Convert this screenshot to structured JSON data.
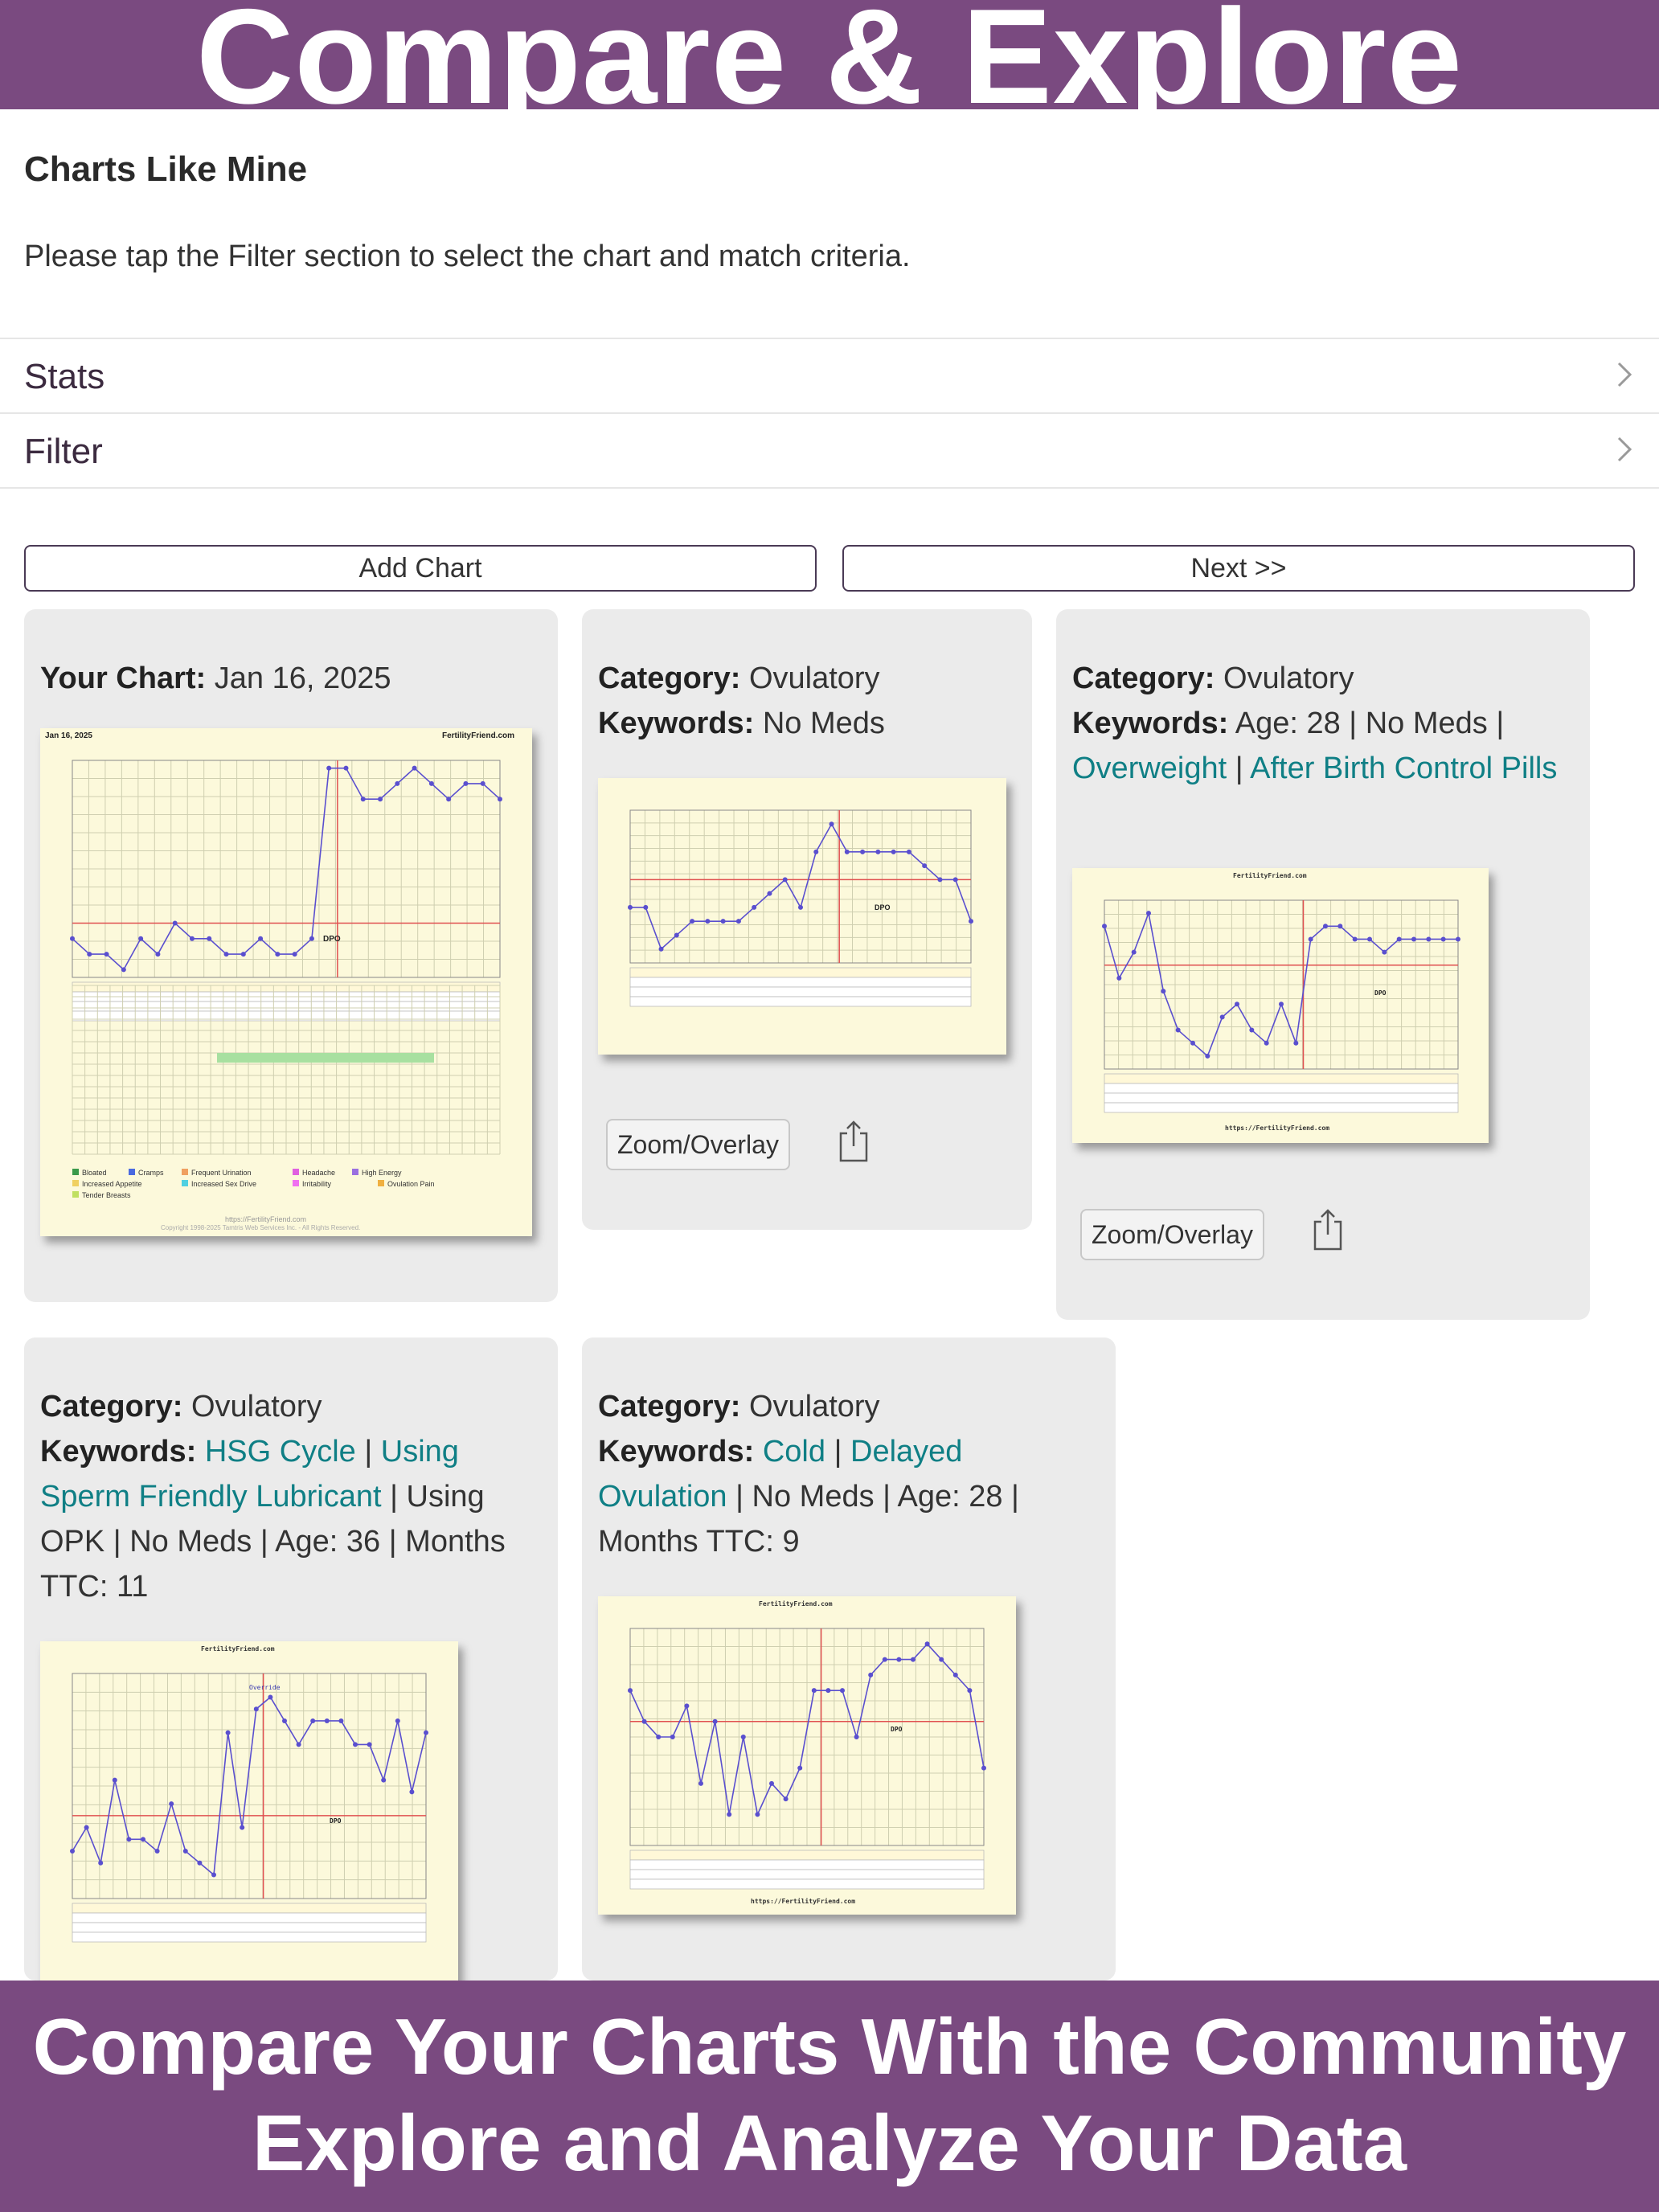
{
  "banner_top": "Compare & Explore",
  "section": {
    "heading": "Charts Like Mine",
    "instructions": "Please tap the Filter section to select the chart and match criteria."
  },
  "rows": [
    {
      "label": "Stats",
      "icon": "chevron-right-icon"
    },
    {
      "label": "Filter",
      "icon": "chevron-right-icon"
    }
  ],
  "buttons": {
    "add_chart": "Add Chart",
    "next": "Next >>"
  },
  "cards": [
    {
      "label": "Your Chart:",
      "date": "Jan 16, 2025",
      "chart": {
        "header_left": "Jan 16, 2025",
        "header_right": "FertilityFriend.com",
        "dpo": "DPO",
        "legend": [
          "Bloated",
          "Cramps",
          "Frequent Urination",
          "Headache",
          "High Energy",
          "Increased Appetite",
          "Increased Sex Drive",
          "Irritability",
          "Ovulation Pain",
          "Tender Breasts"
        ],
        "footer_url": "https://FertilityFriend.com",
        "copyright": "Copyright 1998-2025 Tamtris Web Services Inc. - All Rights Reserved."
      }
    },
    {
      "category_label": "Category:",
      "category": "Ovulatory",
      "keywords_label": "Keywords:",
      "keywords": "No Meds",
      "chart": {
        "dpo": "DPO"
      },
      "zoom": "Zoom/Overlay",
      "share_icon": "share-icon"
    },
    {
      "category_label": "Category:",
      "category": "Ovulatory",
      "keywords_label": "Keywords:",
      "kw_plain_1": "Age: 28 | No Meds |",
      "kw_link_1": "Overweight",
      "kw_sep": "|",
      "kw_link_2": "After Birth Control Pills",
      "chart": {
        "header": "FertilityFriend.com",
        "dpo": "DPO",
        "footer_url": "https://FertilityFriend.com"
      },
      "zoom": "Zoom/Overlay",
      "share_icon": "share-icon"
    },
    {
      "category_label": "Category:",
      "category": "Ovulatory",
      "keywords_label": "Keywords:",
      "kw_link_1": "HSG Cycle",
      "kw_sep": "|",
      "kw_link_2": "Using Sperm Friendly Lubricant",
      "kw_plain": "| Using OPK | No Meds | Age: 36 | Months TTC: 11",
      "chart": {
        "header": "FertilityFriend.com",
        "override": "Override",
        "dpo": "DPO"
      }
    },
    {
      "category_label": "Category:",
      "category": "Ovulatory",
      "keywords_label": "Keywords:",
      "kw_link_1": "Cold",
      "kw_sep": "|",
      "kw_link_2": "Delayed Ovulation",
      "kw_plain": "| No Meds | Age: 28 | Months TTC: 9",
      "chart": {
        "header": "FertilityFriend.com",
        "dpo": "DPO",
        "footer_url": "https://FertilityFriend.com"
      }
    }
  ],
  "banner_bottom": {
    "line1": "Compare Your Charts With the Community",
    "line2": "Explore and Analyze Your Data"
  },
  "colors": {
    "banner": "#7a4a80",
    "link": "#0f7f85",
    "card_bg": "#ebebeb",
    "chart_bg": "#fcf9db",
    "temp_line": "#5a4fcf",
    "coverline": "#e05050"
  },
  "chart_series": {
    "mine": [
      96.2,
      96.1,
      96.1,
      96.0,
      96.2,
      96.1,
      96.3,
      96.2,
      96.2,
      96.1,
      96.1,
      96.2,
      96.1,
      96.1,
      96.2,
      97.3,
      97.3,
      97.1,
      97.1,
      97.2,
      97.3,
      97.2,
      97.1,
      97.2,
      97.2,
      97.1
    ],
    "match1": [
      96.9,
      96.9,
      96.6,
      96.7,
      96.8,
      96.8,
      96.8,
      96.8,
      96.9,
      97.0,
      97.1,
      96.9,
      97.3,
      97.5,
      97.3,
      97.3,
      97.3,
      97.3,
      97.3,
      97.2,
      97.1,
      97.1,
      96.8
    ],
    "match2": [
      97.4,
      97.0,
      97.2,
      97.5,
      96.9,
      96.6,
      96.5,
      96.4,
      96.7,
      96.8,
      96.6,
      96.5,
      96.8,
      96.5,
      97.3,
      97.4,
      97.4,
      97.3,
      97.3,
      97.2,
      97.3,
      97.3,
      97.3,
      97.3,
      97.3
    ],
    "match3": [
      96.3,
      96.5,
      96.2,
      96.9,
      96.4,
      96.4,
      96.3,
      96.7,
      96.3,
      96.2,
      96.1,
      97.3,
      96.5,
      97.5,
      97.6,
      97.4,
      97.2,
      97.4,
      97.4,
      97.4,
      97.2,
      97.2,
      96.9,
      97.4,
      96.8,
      97.3
    ],
    "match4": [
      97.2,
      97.0,
      96.9,
      96.9,
      97.1,
      96.6,
      97.0,
      96.4,
      96.9,
      96.4,
      96.6,
      96.5,
      96.7,
      97.2,
      97.2,
      97.2,
      96.9,
      97.3,
      97.4,
      97.4,
      97.4,
      97.5,
      97.4,
      97.3,
      97.2,
      96.7
    ]
  }
}
